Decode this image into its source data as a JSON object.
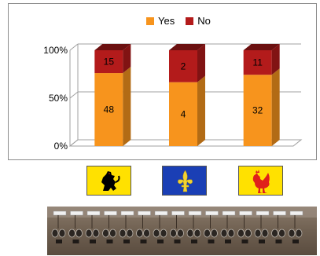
{
  "chart_data": {
    "type": "bar",
    "stacked": true,
    "percent": true,
    "categories": [
      "",
      "",
      ""
    ],
    "series": [
      {
        "name": "Yes",
        "values": [
          48,
          4,
          32
        ],
        "color": "#f7941d"
      },
      {
        "name": "No",
        "values": [
          15,
          2,
          11
        ],
        "color": "#b31b1b"
      }
    ],
    "yticks": [
      "0%",
      "50%",
      "100%"
    ],
    "ylim": [
      0,
      100
    ],
    "legend_position": "top",
    "grid": true
  },
  "flags": [
    {
      "name": "flanders-flag",
      "background": "#ffe100",
      "figure": "lion",
      "figure_color": "#000000"
    },
    {
      "name": "brussels-flag",
      "background": "#1a3fb5",
      "figure": "iris",
      "figure_color": "#f2d233"
    },
    {
      "name": "wallonia-flag",
      "background": "#ffe100",
      "figure": "rooster",
      "figure_color": "#e0201b"
    }
  ],
  "photo": {
    "subject": "row of voting devices with headsets on a table"
  }
}
